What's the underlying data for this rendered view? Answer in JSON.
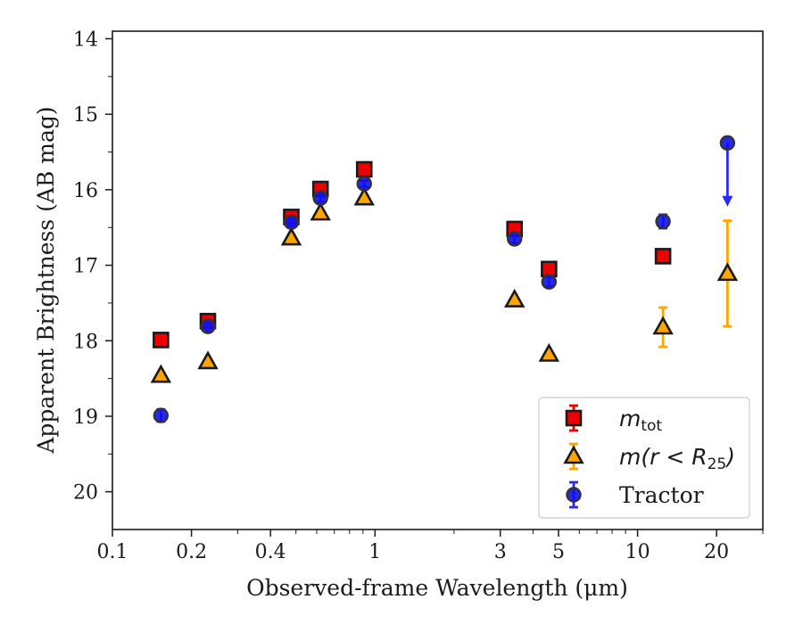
{
  "chart_data": {
    "type": "scatter",
    "xlabel": "Observed-frame Wavelength (μm)",
    "ylabel": "Apparent Brightness (AB mag)",
    "xscale": "log",
    "xlim": [
      0.1,
      30
    ],
    "ylim": [
      20.5,
      13.9
    ],
    "y_inverted": true,
    "x_ticks": [
      {
        "value": 0.1,
        "label": "0.1"
      },
      {
        "value": 0.2,
        "label": "0.2"
      },
      {
        "value": 0.4,
        "label": "0.4"
      },
      {
        "value": 1,
        "label": "1"
      },
      {
        "value": 3,
        "label": "3"
      },
      {
        "value": 5,
        "label": "5"
      },
      {
        "value": 10,
        "label": "10"
      },
      {
        "value": 20,
        "label": "20"
      }
    ],
    "x_minor_ticks": [
      0.3,
      0.5,
      0.6,
      0.7,
      0.8,
      0.9,
      2,
      4,
      6,
      7,
      8,
      9,
      30
    ],
    "y_ticks": [
      {
        "value": 14,
        "label": "14"
      },
      {
        "value": 15,
        "label": "15"
      },
      {
        "value": 16,
        "label": "16"
      },
      {
        "value": 17,
        "label": "17"
      },
      {
        "value": 18,
        "label": "18"
      },
      {
        "value": 19,
        "label": "19"
      },
      {
        "value": 20,
        "label": "20"
      }
    ],
    "y_minor_ticks": [
      14.5,
      15.5,
      16.5,
      17.5,
      18.5,
      19.5
    ],
    "grid": false,
    "legend_position": "lower-right",
    "series": [
      {
        "name": "m_tot",
        "marker": "square",
        "color": "#ee0000",
        "edge_color": "#1a1a1a",
        "errbar_color": "#ee0000",
        "x": [
          0.153,
          0.231,
          0.48,
          0.62,
          0.91,
          3.4,
          4.6,
          12.5
        ],
        "y": [
          17.99,
          17.74,
          16.36,
          15.99,
          15.73,
          16.52,
          17.05,
          16.88
        ],
        "yerr": [
          0.04,
          0.04,
          0.03,
          0.03,
          0.03,
          0.05,
          0.05,
          0.07
        ]
      },
      {
        "name": "m(r < R25)",
        "marker": "triangle",
        "color": "#ffa500",
        "edge_color": "#1a1a1a",
        "errbar_color": "#ffa500",
        "x": [
          0.153,
          0.231,
          0.48,
          0.62,
          0.91,
          3.4,
          4.6,
          12.5,
          22.0
        ],
        "y": [
          18.46,
          18.28,
          16.64,
          16.31,
          16.11,
          17.46,
          18.18,
          17.82,
          17.11
        ],
        "yerr": [
          0.03,
          0.03,
          0.02,
          0.02,
          0.02,
          0.03,
          0.03,
          0.26,
          0.7
        ]
      },
      {
        "name": "Tractor",
        "marker": "circle",
        "color": "#1010ee",
        "edge_color": "#333333",
        "errbar_color": "#2a2aee",
        "x": [
          0.153,
          0.231,
          0.48,
          0.62,
          0.91,
          3.4,
          4.6,
          12.5,
          22.0
        ],
        "y": [
          18.99,
          17.81,
          16.43,
          16.11,
          15.92,
          16.65,
          17.22,
          16.42,
          15.38
        ],
        "yerr": [
          0.08,
          0.07,
          0.05,
          0.05,
          0.04,
          0.06,
          0.06,
          0.09,
          0.0
        ],
        "upper_limit_index": 8,
        "upper_limit_arrow_to": 16.2
      }
    ]
  },
  "legend": {
    "items": [
      {
        "id": "mtot",
        "symbol": "m",
        "subscript": "tot"
      },
      {
        "id": "mr",
        "symbol": "m(r < R",
        "subscript": "25",
        "suffix": ")"
      },
      {
        "id": "tractor",
        "label": "Tractor"
      }
    ]
  }
}
